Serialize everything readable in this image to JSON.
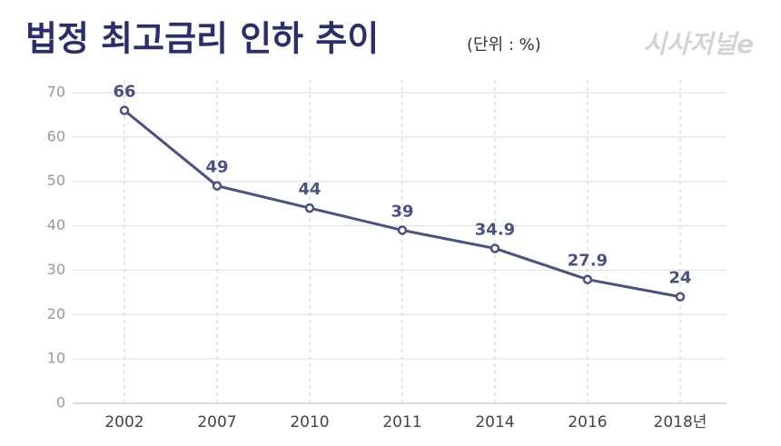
{
  "chart_data": {
    "type": "line",
    "title": "법정 최고금리 인하 추이",
    "subtitle": "(단위 : %)",
    "logo": "시사저널e",
    "categories": [
      "2002",
      "2007",
      "2010",
      "2011",
      "2014",
      "2016",
      "2018년"
    ],
    "series": [
      {
        "name": "법정 최고금리",
        "color": "#4a5284",
        "values": [
          66,
          49,
          44,
          39,
          34.9,
          27.9,
          24
        ]
      }
    ],
    "ylim": [
      0,
      70
    ],
    "yticks": [
      0,
      10,
      20,
      30,
      40,
      50,
      60,
      70
    ],
    "grid": true
  }
}
